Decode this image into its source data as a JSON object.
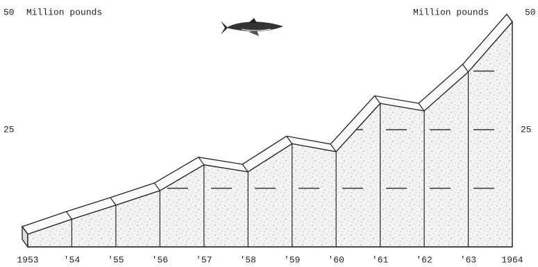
{
  "chart_data": {
    "type": "area3d",
    "y_label": "Million pounds",
    "categories": [
      "1953",
      "'54",
      "'55",
      "'56",
      "'57",
      "'58",
      "'59",
      "'60",
      "'61",
      "'62",
      "'63",
      "1964"
    ],
    "values": [
      2.7,
      5.9,
      8.9,
      12,
      17.5,
      16,
      22,
      20.3,
      30.6,
      29,
      37.3,
      48
    ],
    "ylim": [
      0,
      50
    ],
    "yticks": [
      25,
      50
    ],
    "grid_levels": [
      12.5,
      25,
      37.5
    ]
  }
}
